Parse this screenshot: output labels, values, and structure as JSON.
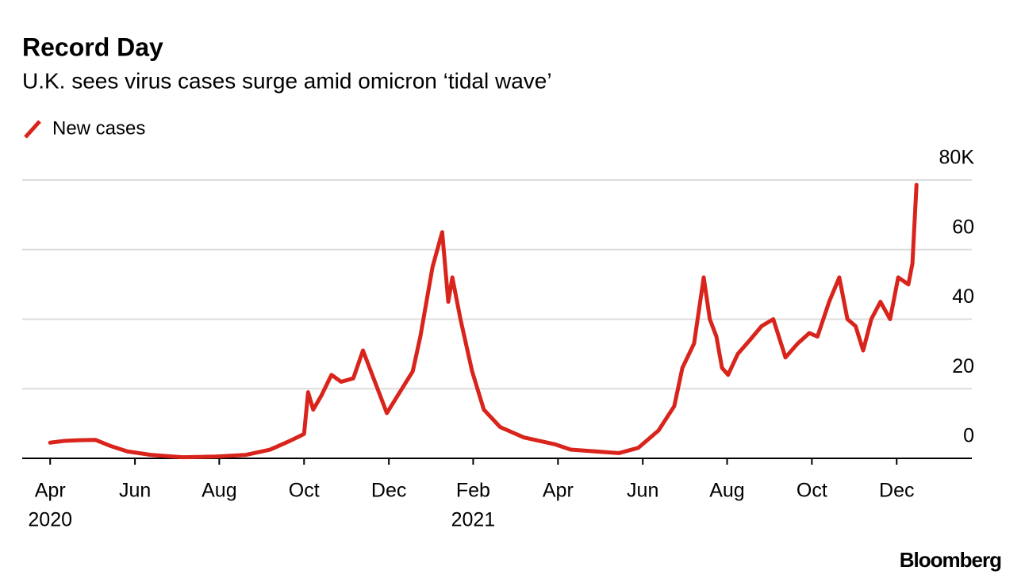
{
  "chart_data": {
    "type": "line",
    "title": "Record Day",
    "subtitle": "U.K. sees virus cases surge amid omicron ‘tidal wave’",
    "source": "Bloomberg",
    "grid": true,
    "xlim": [
      2020.195,
      2022.065
    ],
    "xticks": [
      {
        "value": 2020.25,
        "label": "Apr",
        "year": "2020"
      },
      {
        "value": 2020.417,
        "label": "Jun"
      },
      {
        "value": 2020.583,
        "label": "Aug"
      },
      {
        "value": 2020.75,
        "label": "Oct"
      },
      {
        "value": 2020.917,
        "label": "Dec"
      },
      {
        "value": 2021.083,
        "label": "Feb",
        "year": "2021"
      },
      {
        "value": 2021.25,
        "label": "Apr"
      },
      {
        "value": 2021.417,
        "label": "Jun"
      },
      {
        "value": 2021.583,
        "label": "Aug"
      },
      {
        "value": 2021.75,
        "label": "Oct"
      },
      {
        "value": 2021.917,
        "label": "Dec"
      }
    ],
    "ylim": [
      0,
      80
    ],
    "yticks": [
      0,
      20,
      40,
      60,
      {
        "value": 80,
        "label": "80K"
      }
    ],
    "x": [
      2020.25,
      2020.277,
      2020.308,
      2020.339,
      2020.37,
      2020.402,
      2020.448,
      2020.511,
      2020.573,
      2020.636,
      2020.683,
      2020.722,
      2020.75,
      2020.758,
      2020.768,
      2020.784,
      2020.804,
      2020.823,
      2020.847,
      2020.866,
      2020.913,
      2020.964,
      2020.979,
      2021.003,
      2021.022,
      2021.034,
      2021.042,
      2021.058,
      2021.081,
      2021.104,
      2021.136,
      2021.183,
      2021.245,
      2021.275,
      2021.37,
      2021.408,
      2021.448,
      2021.479,
      2021.495,
      2021.518,
      2021.537,
      2021.549,
      2021.562,
      2021.573,
      2021.585,
      2021.604,
      2021.628,
      2021.651,
      2021.674,
      2021.698,
      2021.722,
      2021.745,
      2021.761,
      2021.784,
      2021.804,
      2021.82,
      2021.836,
      2021.851,
      2021.867,
      2021.885,
      2021.904,
      2021.92,
      2021.94,
      2021.948,
      2021.956
    ],
    "series": [
      {
        "name": "New cases",
        "color": "#d9241c",
        "values": [
          4.5,
          5,
          5.2,
          5.3,
          3.5,
          2,
          1,
          0.3,
          0.5,
          1,
          2.5,
          5,
          7,
          19,
          14,
          18,
          24,
          22,
          23,
          31,
          13,
          25,
          35,
          55,
          65,
          45,
          52,
          40,
          25,
          14,
          9,
          6,
          4,
          2.5,
          1.5,
          3,
          8,
          15,
          26,
          33,
          52,
          40,
          35,
          26,
          24,
          30,
          34,
          38,
          40,
          29,
          33,
          36,
          35,
          45,
          52,
          40,
          38,
          31,
          40,
          45,
          40,
          52,
          50,
          56,
          78.6
        ]
      }
    ]
  }
}
